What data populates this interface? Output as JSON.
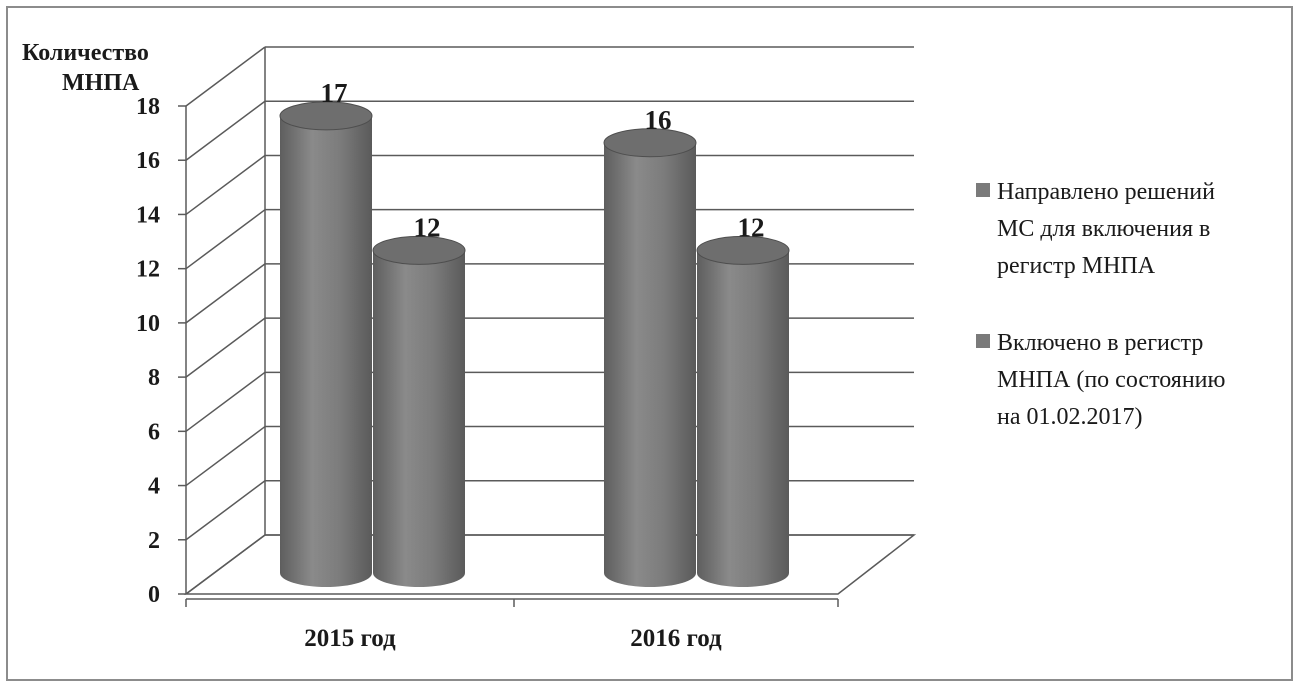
{
  "chart_data": {
    "type": "bar",
    "style": "3d-cylinder",
    "title": "",
    "ylabel_lines": [
      "Количество",
      "МНПА"
    ],
    "xlabel": "",
    "categories": [
      "2015 год",
      "2016 год"
    ],
    "series": [
      {
        "name_lines": [
          "Направлено решений",
          "МС для включения в",
          "регистр МНПА"
        ],
        "values": [
          17,
          16
        ],
        "color": "#7a7a7a"
      },
      {
        "name_lines": [
          "Включено в регистр",
          "МНПА  (по состоянию",
          "на 01.02.2017)"
        ],
        "values": [
          12,
          12
        ],
        "color": "#7a7a7a"
      }
    ],
    "data_labels": [
      "17",
      "12",
      "16",
      "12"
    ],
    "ylim": [
      0,
      18
    ],
    "yticks": [
      "0",
      "2",
      "4",
      "6",
      "8",
      "10",
      "12",
      "14",
      "16",
      "18"
    ],
    "grid": true,
    "legend_position": "right"
  }
}
